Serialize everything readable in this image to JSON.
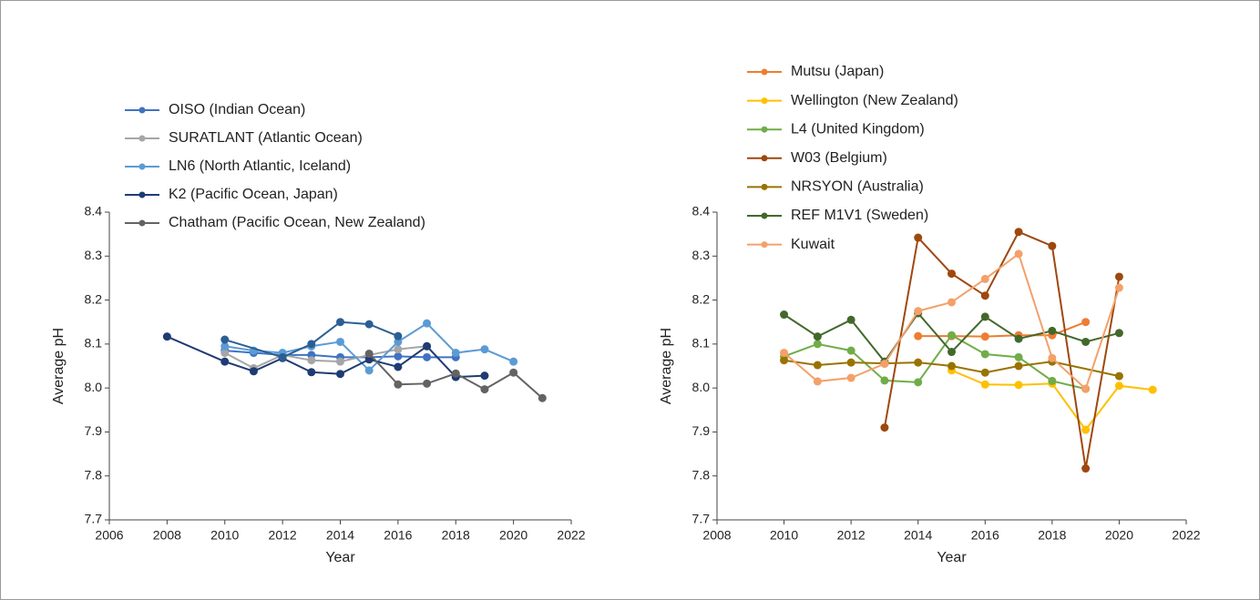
{
  "chart_data": [
    {
      "type": "line",
      "xlabel": "Year",
      "ylabel": "Average pH",
      "xlim": [
        2006,
        2022
      ],
      "xticks": [
        2006,
        2008,
        2010,
        2012,
        2014,
        2016,
        2018,
        2020,
        2022
      ],
      "ylim": [
        7.7,
        8.4
      ],
      "yticks": [
        7.7,
        7.8,
        7.9,
        {
          "value": 8,
          "label": "8.0"
        },
        8.1,
        8.2,
        8.3,
        8.4
      ],
      "series": [
        {
          "name": "OISO (Indian Ocean)",
          "color": "#3f73c2",
          "x": [
            2010,
            2011,
            2012,
            2013,
            2014,
            2015,
            2016,
            2017,
            2018
          ],
          "values": [
            8.085,
            8.08,
            8.075,
            8.075,
            8.07,
            8.07,
            8.072,
            8.07,
            8.07
          ]
        },
        {
          "name": "SURATLANT (Atlantic Ocean)",
          "color": "#a6a6a6",
          "x": [
            2010,
            2011,
            2012,
            2013,
            2014,
            2015,
            2016,
            2017
          ],
          "values": [
            8.08,
            8.045,
            8.075,
            8.063,
            8.06,
            8.075,
            8.088,
            8.095
          ]
        },
        {
          "name": "LN6 (North Atlantic, Iceland)",
          "color": "#5b9bd5",
          "x": [
            2010,
            2011,
            2012,
            2013,
            2014,
            2015,
            2016,
            2017,
            2018,
            2019,
            2020
          ],
          "values": [
            8.095,
            8.085,
            8.08,
            8.095,
            8.105,
            8.04,
            8.105,
            8.147,
            8.08,
            8.088,
            8.06
          ]
        },
        {
          "name": "K2 (Pacific Ocean, Japan)",
          "color": "#1f3b73",
          "x": [
            2008,
            2010,
            2011,
            2012,
            2013,
            2014,
            2015,
            2016,
            2017,
            2018,
            2019
          ],
          "values": [
            8.117,
            8.06,
            8.038,
            8.068,
            8.036,
            8.032,
            8.065,
            8.048,
            8.095,
            8.025,
            8.028
          ]
        },
        {
          "name": "Chatham (Pacific Ocean, New Zealand)",
          "color": "#636363",
          "x": [
            2015,
            2016,
            2017,
            2018,
            2019,
            2020,
            2021
          ],
          "values": [
            8.078,
            8.008,
            8.01,
            8.033,
            7.997,
            8.035,
            7.977
          ]
        },
        {
          "color": "#2b5f93",
          "x": [
            2010,
            2012,
            2013,
            2014,
            2015,
            2016
          ],
          "values": [
            8.11,
            8.07,
            8.1,
            8.15,
            8.145,
            8.118
          ]
        }
      ]
    },
    {
      "type": "line",
      "xlabel": "Year",
      "ylabel": "Average pH",
      "xlim": [
        2008,
        2022
      ],
      "xticks": [
        2008,
        2010,
        2012,
        2014,
        2016,
        2018,
        2020,
        2022
      ],
      "ylim": [
        7.7,
        8.4
      ],
      "yticks": [
        7.7,
        7.8,
        7.9,
        {
          "value": 8,
          "label": "8.0"
        },
        8.1,
        8.2,
        8.3,
        8.4
      ],
      "series": [
        {
          "name": "Mutsu (Japan)",
          "color": "#ed7d31",
          "x": [
            2014,
            2015,
            2016,
            2017,
            2018,
            2019
          ],
          "values": [
            8.118,
            8.118,
            8.117,
            8.12,
            8.12,
            8.15
          ]
        },
        {
          "name": "Wellington (New Zealand)",
          "color": "#ffc000",
          "x": [
            2015,
            2016,
            2017,
            2018,
            2019,
            2020,
            2021
          ],
          "values": [
            8.04,
            8.008,
            8.007,
            8.01,
            7.905,
            8.005,
            7.996
          ]
        },
        {
          "name": "L4 (United Kingdom)",
          "color": "#70ad47",
          "x": [
            2010,
            2011,
            2012,
            2013,
            2014,
            2015,
            2016,
            2017,
            2018,
            2019
          ],
          "values": [
            8.072,
            8.1,
            8.085,
            8.017,
            8.013,
            8.12,
            8.077,
            8.07,
            8.016,
            7.998
          ]
        },
        {
          "name": "W03 (Belgium)",
          "color": "#9e480e",
          "x": [
            2013,
            2014,
            2015,
            2016,
            2017,
            2018,
            2019,
            2020
          ],
          "values": [
            7.91,
            8.342,
            8.26,
            8.21,
            8.355,
            8.323,
            7.817,
            8.253
          ]
        },
        {
          "name": "NRSYON (Australia)",
          "color": "#997300",
          "x": [
            2010,
            2011,
            2012,
            2013,
            2014,
            2015,
            2016,
            2017,
            2018,
            2020
          ],
          "values": [
            8.063,
            8.052,
            8.058,
            8.056,
            8.058,
            8.05,
            8.035,
            8.05,
            8.06,
            8.027
          ]
        },
        {
          "name": "REF M1V1 (Sweden)",
          "color": "#43682b",
          "x": [
            2010,
            2011,
            2012,
            2013,
            2014,
            2015,
            2016,
            2017,
            2018,
            2019,
            2020
          ],
          "values": [
            8.167,
            8.117,
            8.155,
            8.06,
            8.17,
            8.082,
            8.162,
            8.112,
            8.13,
            8.105,
            8.125
          ]
        },
        {
          "name": "Kuwait",
          "color": "#f4a06a",
          "x": [
            2010,
            2011,
            2012,
            2013,
            2014,
            2015,
            2016,
            2017,
            2018,
            2019,
            2020
          ],
          "values": [
            8.08,
            8.015,
            8.023,
            8.055,
            8.175,
            8.195,
            8.248,
            8.305,
            8.068,
            7.998,
            8.228
          ]
        }
      ]
    }
  ]
}
